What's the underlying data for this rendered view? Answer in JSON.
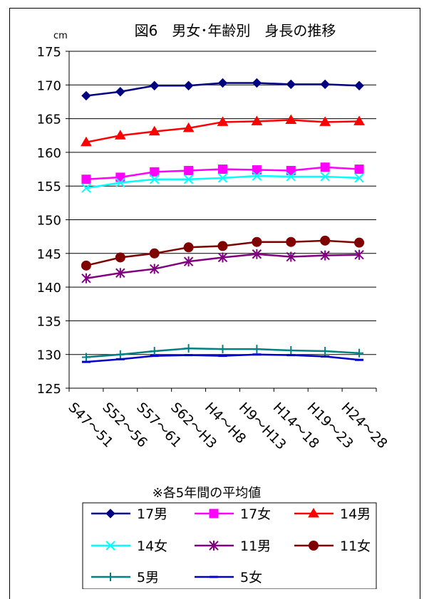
{
  "chart_data": {
    "type": "line",
    "title": "図6　男女･年齢別　身長の推移",
    "unit": "cm",
    "note": "※各5年間の平均値",
    "categories": [
      "S47～51",
      "S52～56",
      "S57～61",
      "S62～H3",
      "H4～H8",
      "H9～H13",
      "H14～18",
      "H19～23",
      "H24～28"
    ],
    "ylim": [
      125,
      175
    ],
    "yticks": [
      125,
      130,
      135,
      140,
      145,
      150,
      155,
      160,
      165,
      170,
      175
    ],
    "grid": true,
    "legend_position": "bottom",
    "series": [
      {
        "name": "17男",
        "color": "#000080",
        "marker": "diamond",
        "values": [
          168.4,
          169.0,
          169.9,
          169.9,
          170.3,
          170.3,
          170.1,
          170.1,
          169.9
        ]
      },
      {
        "name": "17女",
        "color": "#ff00ff",
        "marker": "square",
        "values": [
          156.0,
          156.3,
          157.1,
          157.3,
          157.5,
          157.4,
          157.3,
          157.8,
          157.5
        ]
      },
      {
        "name": "14男",
        "color": "#ff0000",
        "marker": "triangle",
        "values": [
          161.5,
          162.5,
          163.1,
          163.6,
          164.5,
          164.6,
          164.8,
          164.5,
          164.6
        ]
      },
      {
        "name": "14女",
        "color": "#00ffff",
        "marker": "x",
        "values": [
          154.7,
          155.5,
          156.0,
          156.0,
          156.2,
          156.5,
          156.4,
          156.4,
          156.2
        ]
      },
      {
        "name": "11男",
        "color": "#800080",
        "marker": "star",
        "values": [
          141.3,
          142.1,
          142.7,
          143.8,
          144.4,
          144.9,
          144.5,
          144.7,
          144.8
        ]
      },
      {
        "name": "11女",
        "color": "#800000",
        "marker": "circle",
        "values": [
          143.2,
          144.4,
          145.0,
          145.9,
          146.1,
          146.7,
          146.7,
          146.9,
          146.6
        ]
      },
      {
        "name": "5男",
        "color": "#008080",
        "marker": "plus",
        "values": [
          129.6,
          130.0,
          130.5,
          130.9,
          130.8,
          130.8,
          130.6,
          130.5,
          130.2
        ]
      },
      {
        "name": "5女",
        "color": "#0000cc",
        "marker": "dash",
        "values": [
          128.9,
          129.3,
          129.8,
          129.9,
          129.8,
          130.0,
          129.9,
          129.7,
          129.2
        ]
      }
    ]
  }
}
